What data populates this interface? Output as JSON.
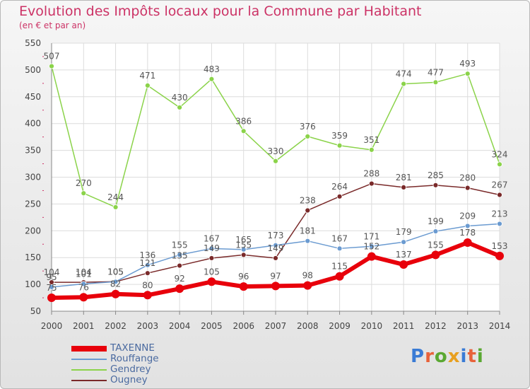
{
  "title": "Evolution des Impôts locaux pour la Commune par Habitant",
  "subtitle": "(en € et par an)",
  "logo": {
    "text": "Proxiti",
    "letter_colors": [
      "#3a7bd5",
      "#e8623a",
      "#5aa832",
      "#e8a020",
      "#3a7bd5",
      "#e8623a",
      "#5aa832"
    ]
  },
  "chart_data": {
    "type": "line",
    "x": [
      "2000",
      "2001",
      "2002",
      "2003",
      "2004",
      "2005",
      "2006",
      "2007",
      "2008",
      "2009",
      "2010",
      "2011",
      "2012",
      "2013",
      "2014"
    ],
    "ylim": [
      50,
      550
    ],
    "yticks": [
      50,
      100,
      150,
      200,
      250,
      300,
      350,
      400,
      450,
      500,
      550
    ],
    "grid": true,
    "legend_position": "bottom-left",
    "series": [
      {
        "name": "TAXENNE",
        "color": "#e8000b",
        "values": [
          75,
          76,
          82,
          80,
          92,
          105,
          96,
          97,
          98,
          115,
          152,
          137,
          155,
          178,
          153
        ],
        "labels": [
          "75",
          "76",
          "82",
          "80",
          "92",
          "105",
          "96",
          "97",
          "98",
          "115",
          "152",
          "137",
          "155",
          "178",
          "153"
        ]
      },
      {
        "name": "Rouffange",
        "color": "#6b9bd1",
        "values": [
          95,
          101,
          105,
          136,
          155,
          167,
          165,
          173,
          181,
          167,
          171,
          179,
          199,
          209,
          213
        ],
        "labels": [
          "95",
          "101",
          "105",
          "136",
          "155",
          "167",
          "165",
          "173",
          "181",
          "167",
          "171",
          "179",
          "199",
          "209",
          "213"
        ]
      },
      {
        "name": "Gendrey",
        "color": "#8bd34a",
        "values": [
          507,
          270,
          244,
          471,
          430,
          483,
          386,
          330,
          376,
          359,
          351,
          474,
          477,
          493,
          324
        ],
        "labels": [
          "507",
          "270",
          "244",
          "471",
          "430",
          "483",
          "386",
          "330",
          "376",
          "359",
          "351",
          "474",
          "477",
          "493",
          "324"
        ]
      },
      {
        "name": "Ougney",
        "color": "#7a2a2a",
        "values": [
          104,
          104,
          105,
          121,
          135,
          149,
          155,
          149,
          238,
          264,
          288,
          281,
          285,
          280,
          267
        ],
        "labels": [
          "104",
          "104",
          "105",
          "121",
          "135",
          "149",
          "155",
          "149",
          "238",
          "264",
          "288",
          "281",
          "285",
          "280",
          "267"
        ]
      }
    ]
  }
}
